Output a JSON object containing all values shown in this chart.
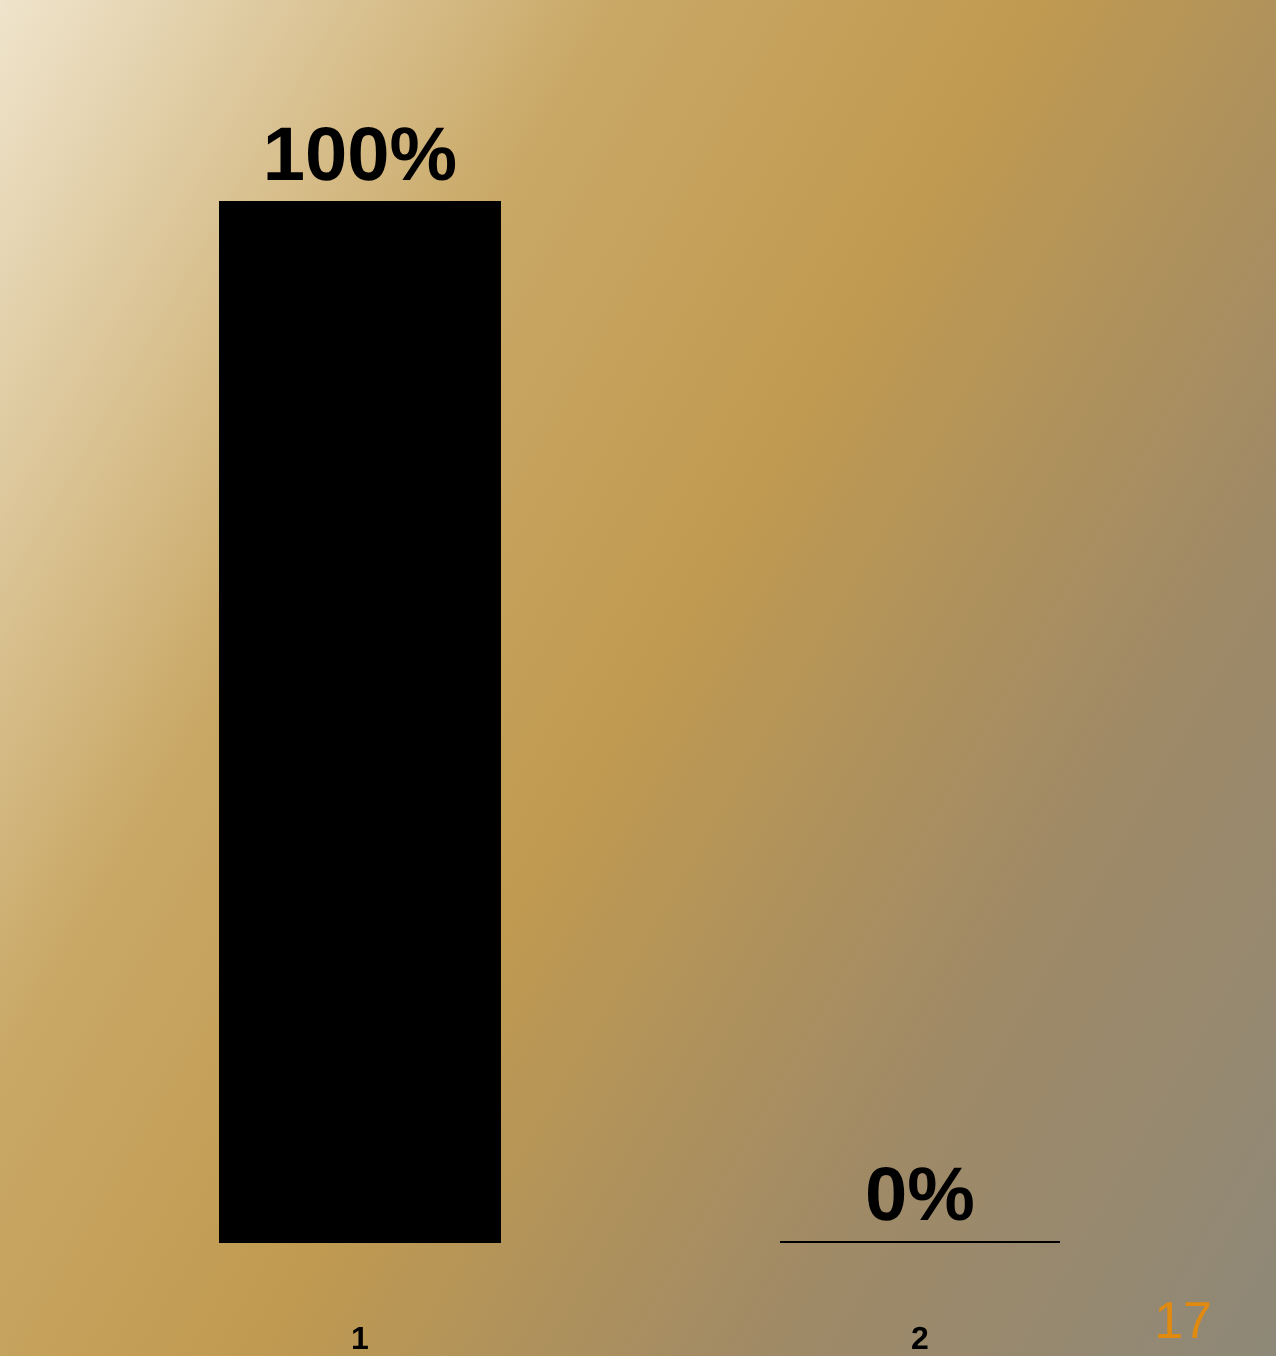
{
  "chart_data": {
    "type": "bar",
    "categories": [
      "1",
      "2"
    ],
    "values": [
      100,
      0
    ],
    "colors": [
      "#000000",
      "#c00000"
    ],
    "value_labels": [
      "100%",
      "0%"
    ],
    "annotations": [
      "17"
    ]
  }
}
